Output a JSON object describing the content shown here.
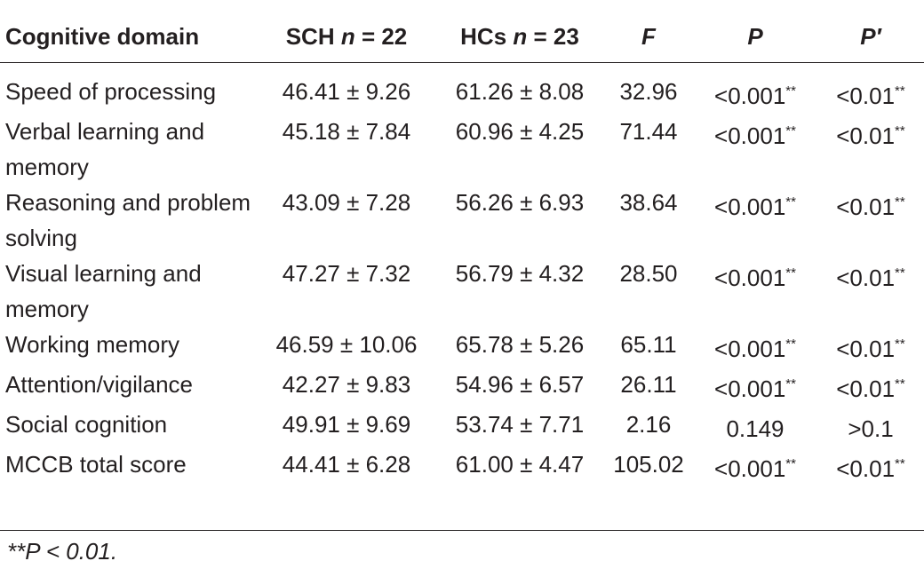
{
  "headers": {
    "domain": "Cognitive domain",
    "sch_prefix": "SCH ",
    "sch_n": "n",
    "sch_suffix": " = 22",
    "hc_prefix": "HCs ",
    "hc_n": "n",
    "hc_suffix": " = 23",
    "f": "F",
    "p": "P",
    "p_prime": "P′"
  },
  "rows": [
    {
      "domain": "Speed of processing",
      "sch": "46.41 ± 9.26",
      "hc": "61.26 ± 8.08",
      "f": "32.96",
      "p": "<0.001",
      "p_mark": "**",
      "p_prime": "<0.01",
      "p_prime_mark": "**"
    },
    {
      "domain": "Verbal learning and memory",
      "sch": "45.18 ± 7.84",
      "hc": "60.96 ± 4.25",
      "f": "71.44",
      "p": "<0.001",
      "p_mark": "**",
      "p_prime": "<0.01",
      "p_prime_mark": "**"
    },
    {
      "domain": "Reasoning and problem solving",
      "sch": "43.09 ± 7.28",
      "hc": "56.26 ± 6.93",
      "f": "38.64",
      "p": "<0.001",
      "p_mark": "**",
      "p_prime": "<0.01",
      "p_prime_mark": "**"
    },
    {
      "domain": "Visual learning and memory",
      "sch": "47.27 ± 7.32",
      "hc": "56.79 ± 4.32",
      "f": "28.50",
      "p": "<0.001",
      "p_mark": "**",
      "p_prime": "<0.01",
      "p_prime_mark": "**"
    },
    {
      "domain": "Working memory",
      "sch": "46.59 ± 10.06",
      "hc": "65.78 ± 5.26",
      "f": "65.11",
      "p": "<0.001",
      "p_mark": "**",
      "p_prime": "<0.01",
      "p_prime_mark": "**"
    },
    {
      "domain": "Attention/vigilance",
      "sch": "42.27 ± 9.83",
      "hc": "54.96 ± 6.57",
      "f": "26.11",
      "p": "<0.001",
      "p_mark": "**",
      "p_prime": "<0.01",
      "p_prime_mark": "**"
    },
    {
      "domain": "Social cognition",
      "sch": "49.91 ± 9.69",
      "hc": "53.74 ± 7.71",
      "f": "2.16",
      "p": "0.149",
      "p_mark": "",
      "p_prime": ">0.1",
      "p_prime_mark": ""
    },
    {
      "domain": "MCCB total score",
      "sch": "44.41 ± 6.28",
      "hc": "61.00 ± 4.47",
      "f": "105.02",
      "p": "<0.001",
      "p_mark": "**",
      "p_prime": "<0.01",
      "p_prime_mark": "**"
    }
  ],
  "footnote": "**P < 0.01."
}
